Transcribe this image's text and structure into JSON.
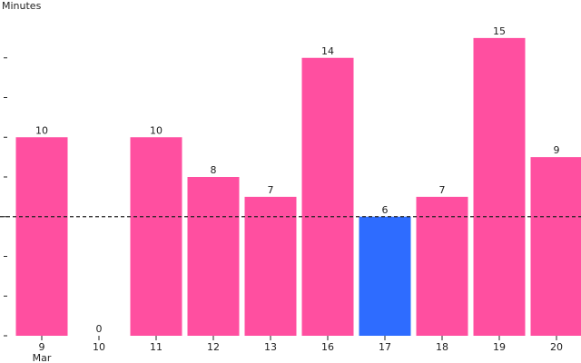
{
  "chart_data": {
    "type": "bar",
    "ylabel": "Minutes",
    "xlabel": "",
    "categories": [
      "9",
      "10",
      "11",
      "12",
      "13",
      "16",
      "17",
      "18",
      "19",
      "20"
    ],
    "first_category_sublabel": "Mar",
    "values": [
      10,
      0,
      10,
      8,
      7,
      14,
      6,
      7,
      15,
      9
    ],
    "highlight_index": 6,
    "reference_line": 6,
    "ylim": [
      0,
      16
    ],
    "y_tick_step": 2,
    "grid": false,
    "colors": {
      "bar": "#ff4fa0",
      "highlight": "#2e6cff",
      "reference_line": "#222222",
      "text": "#222222"
    }
  }
}
